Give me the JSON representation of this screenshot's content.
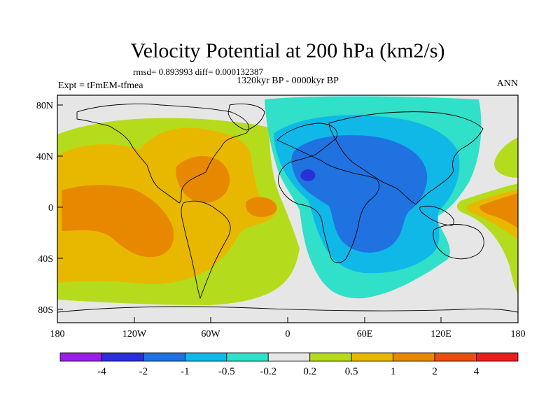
{
  "title": "Velocity Potential at 200 hPa (km2/s)",
  "stats_line": "rmsd= 0.893993 diff= 0.000132387",
  "period_line": "1320kyr BP - 0000kyr BP",
  "experiment_label": "Expt = tFmEM-tfmea",
  "season_label": "ANN",
  "y_ticks": [
    "80N",
    "40N",
    "0",
    "40S",
    "80S"
  ],
  "x_ticks": [
    "180",
    "120W",
    "60W",
    "0",
    "60E",
    "120E",
    "180"
  ],
  "colorbar": {
    "colors": [
      "#9a1ee6",
      "#2b2fd8",
      "#1f72e0",
      "#10b8e8",
      "#30e0c8",
      "#e6e6e6",
      "#b5dc1c",
      "#e8b800",
      "#e88800",
      "#e85010",
      "#e81e1e"
    ],
    "labels": [
      "-4",
      "-2",
      "-1",
      "-0.5",
      "-0.2",
      "0.2",
      "0.5",
      "1",
      "2",
      "4"
    ]
  },
  "field_colors": {
    "background": "#e6e6e6",
    "weak_pos": "#b5dc1c",
    "mid_pos": "#e8b800",
    "strong_pos": "#e88800",
    "weak_neg": "#30e0c8",
    "mid_neg": "#10b8e8",
    "strong_neg": "#1f72e0",
    "max_neg": "#2b2fd8"
  }
}
